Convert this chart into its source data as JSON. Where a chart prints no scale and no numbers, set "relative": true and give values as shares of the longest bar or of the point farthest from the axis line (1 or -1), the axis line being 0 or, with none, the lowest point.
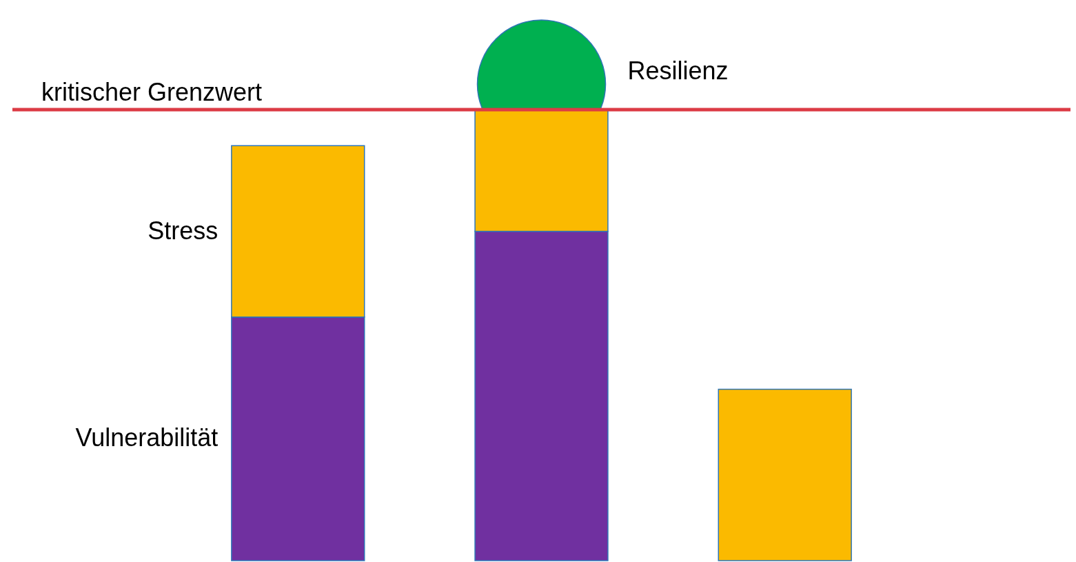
{
  "chart_data": {
    "type": "bar",
    "stacked": true,
    "relative": true,
    "categories": [
      null,
      null,
      null
    ],
    "series": [
      {
        "name": "Vulnerabilität",
        "color": "#7030a0",
        "values": [
          0.54,
          0.73,
          null
        ]
      },
      {
        "name": "Stress",
        "color": "#fbba00",
        "values": [
          0.38,
          0.27,
          0.38
        ]
      }
    ],
    "ref_lines": [
      {
        "axis": "y",
        "value": 1.0,
        "label": "kritischer Grenzwert",
        "color": "#dc3b45"
      }
    ],
    "annotations": [
      "Resilienz"
    ]
  }
}
